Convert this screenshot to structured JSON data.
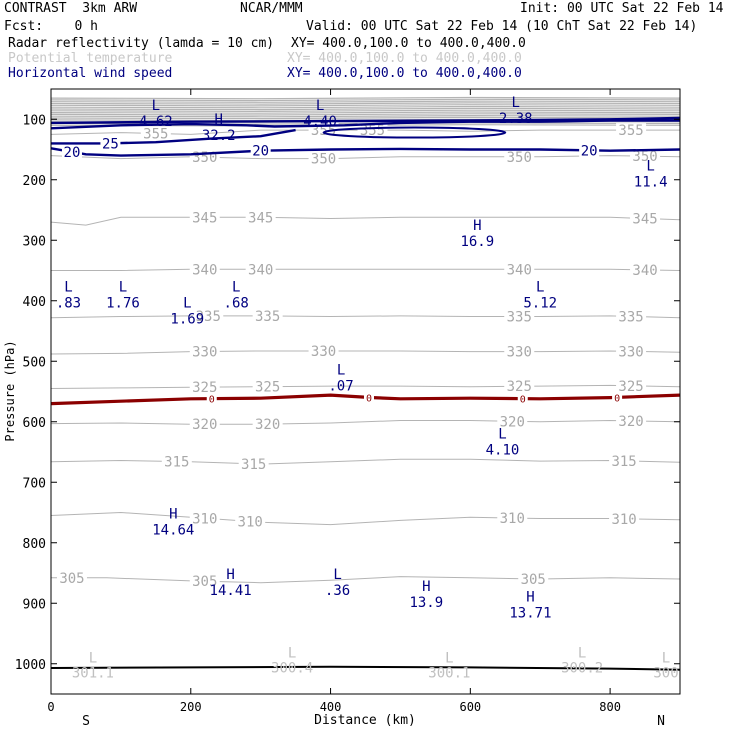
{
  "header": {
    "title_left": "CONTRAST  3km ARW",
    "title_center": "NCAR/MMM",
    "init": "Init: 00 UTC Sat 22 Feb 14",
    "fcst": "Fcst:    0 h",
    "valid": "Valid: 00 UTC Sat 22 Feb 14 (10 ChT Sat 22 Feb 14)",
    "fields": [
      {
        "label": "Radar reflectivity (lamda = 10 cm)",
        "xy": "XY= 400.0,100.0 to 400.0,400.0",
        "color": "#000000"
      },
      {
        "label": "Potential temperature",
        "xy": "XY= 400.0,100.0 to 400.0,400.0",
        "color": "#c8c8c8"
      },
      {
        "label": "Horizontal wind speed",
        "xy": "XY= 400.0,100.0 to 400.0,400.0",
        "color": "#000080"
      }
    ]
  },
  "colors": {
    "theta": "#b4b4b4",
    "theta_label": "#a8a8a8",
    "wind": "#000080",
    "freezing": "#8b0000",
    "extrema": "#000080"
  },
  "chart_data": {
    "type": "line",
    "title": "",
    "xlabel": "Distance (km)",
    "ylabel": "Pressure (hPa)",
    "xlim": [
      0,
      900
    ],
    "ylim": [
      1050,
      50
    ],
    "x_ticks": [
      0,
      200,
      400,
      600,
      800
    ],
    "y_ticks": [
      100,
      200,
      300,
      400,
      500,
      600,
      700,
      800,
      900,
      1000
    ],
    "x_end_labels": {
      "left": "S",
      "right": "N"
    },
    "theta_contours": [
      {
        "name": "305",
        "points": [
          [
            0,
            858
          ],
          [
            80,
            858
          ],
          [
            200,
            863
          ],
          [
            300,
            866
          ],
          [
            400,
            862
          ],
          [
            500,
            856
          ],
          [
            600,
            858
          ],
          [
            700,
            860
          ],
          [
            800,
            858
          ],
          [
            900,
            860
          ]
        ],
        "labels": [
          [
            30,
            "305"
          ],
          [
            220,
            "305"
          ],
          [
            690,
            "305"
          ]
        ]
      },
      {
        "name": "310",
        "points": [
          [
            0,
            755
          ],
          [
            100,
            750
          ],
          [
            200,
            758
          ],
          [
            300,
            766
          ],
          [
            400,
            770
          ],
          [
            500,
            763
          ],
          [
            600,
            758
          ],
          [
            700,
            760
          ],
          [
            800,
            760
          ],
          [
            900,
            762
          ]
        ],
        "labels": [
          [
            220,
            "310"
          ],
          [
            285,
            "310"
          ],
          [
            660,
            "310"
          ],
          [
            820,
            "310"
          ]
        ]
      },
      {
        "name": "315",
        "points": [
          [
            0,
            666
          ],
          [
            100,
            664
          ],
          [
            200,
            666
          ],
          [
            300,
            670
          ],
          [
            400,
            666
          ],
          [
            500,
            662
          ],
          [
            600,
            662
          ],
          [
            700,
            665
          ],
          [
            800,
            664
          ],
          [
            900,
            667
          ]
        ],
        "labels": [
          [
            180,
            "315"
          ],
          [
            290,
            "315"
          ],
          [
            820,
            "315"
          ]
        ]
      },
      {
        "name": "320",
        "points": [
          [
            0,
            603
          ],
          [
            100,
            602
          ],
          [
            200,
            604
          ],
          [
            300,
            604
          ],
          [
            400,
            602
          ],
          [
            500,
            598
          ],
          [
            600,
            598
          ],
          [
            700,
            600
          ],
          [
            800,
            598
          ],
          [
            900,
            600
          ]
        ],
        "labels": [
          [
            220,
            "320"
          ],
          [
            310,
            "320"
          ],
          [
            660,
            "320"
          ],
          [
            830,
            "320"
          ]
        ]
      },
      {
        "name": "325",
        "points": [
          [
            0,
            545
          ],
          [
            100,
            544
          ],
          [
            200,
            543
          ],
          [
            300,
            542
          ],
          [
            400,
            541
          ],
          [
            500,
            541
          ],
          [
            600,
            542
          ],
          [
            700,
            541
          ],
          [
            800,
            540
          ],
          [
            900,
            542
          ]
        ],
        "labels": [
          [
            220,
            "325"
          ],
          [
            310,
            "325"
          ],
          [
            670,
            "325"
          ],
          [
            830,
            "325"
          ]
        ]
      },
      {
        "name": "330",
        "points": [
          [
            0,
            488
          ],
          [
            100,
            487
          ],
          [
            200,
            484
          ],
          [
            300,
            483
          ],
          [
            400,
            483
          ],
          [
            500,
            483
          ],
          [
            600,
            484
          ],
          [
            700,
            484
          ],
          [
            800,
            483
          ],
          [
            900,
            485
          ]
        ],
        "labels": [
          [
            220,
            "330"
          ],
          [
            390,
            "330"
          ],
          [
            670,
            "330"
          ],
          [
            830,
            "330"
          ]
        ]
      },
      {
        "name": "335",
        "points": [
          [
            0,
            428
          ],
          [
            100,
            426
          ],
          [
            200,
            425
          ],
          [
            300,
            425
          ],
          [
            400,
            426
          ],
          [
            500,
            425
          ],
          [
            600,
            426
          ],
          [
            700,
            426
          ],
          [
            800,
            425
          ],
          [
            900,
            428
          ]
        ],
        "labels": [
          [
            225,
            "335"
          ],
          [
            310,
            "335"
          ],
          [
            670,
            "335"
          ],
          [
            830,
            "335"
          ]
        ]
      },
      {
        "name": "340",
        "points": [
          [
            0,
            350
          ],
          [
            100,
            350
          ],
          [
            200,
            348
          ],
          [
            300,
            348
          ],
          [
            400,
            348
          ],
          [
            500,
            348
          ],
          [
            600,
            348
          ],
          [
            700,
            348
          ],
          [
            800,
            348
          ],
          [
            900,
            350
          ]
        ],
        "labels": [
          [
            220,
            "340"
          ],
          [
            300,
            "340"
          ],
          [
            670,
            "340"
          ],
          [
            850,
            "340"
          ]
        ]
      },
      {
        "name": "345",
        "points": [
          [
            0,
            270
          ],
          [
            50,
            275
          ],
          [
            100,
            262
          ],
          [
            200,
            262
          ],
          [
            300,
            262
          ],
          [
            400,
            264
          ],
          [
            500,
            262
          ],
          [
            600,
            262
          ],
          [
            700,
            262
          ],
          [
            800,
            262
          ],
          [
            900,
            266
          ]
        ],
        "labels": [
          [
            220,
            "345"
          ],
          [
            300,
            "345"
          ],
          [
            850,
            "345"
          ]
        ]
      },
      {
        "name": "350",
        "points": [
          [
            0,
            160
          ],
          [
            100,
            165
          ],
          [
            200,
            162
          ],
          [
            300,
            165
          ],
          [
            400,
            165
          ],
          [
            500,
            162
          ],
          [
            600,
            162
          ],
          [
            700,
            162
          ],
          [
            800,
            160
          ],
          [
            900,
            162
          ]
        ],
        "labels": [
          [
            220,
            "350"
          ],
          [
            390,
            "350"
          ],
          [
            670,
            "350"
          ],
          [
            850,
            "350"
          ]
        ]
      },
      {
        "name": "355",
        "points": [
          [
            0,
            125
          ],
          [
            100,
            122
          ],
          [
            200,
            125
          ],
          [
            300,
            118
          ],
          [
            400,
            118
          ],
          [
            500,
            118
          ],
          [
            600,
            120
          ],
          [
            700,
            118
          ],
          [
            800,
            118
          ],
          [
            900,
            118
          ]
        ],
        "labels": [
          [
            150,
            "355"
          ],
          [
            390,
            "355"
          ],
          [
            460,
            "355"
          ],
          [
            830,
            "355"
          ]
        ]
      }
    ],
    "stratospheric_band": {
      "top": 65,
      "bottom": 112
    },
    "wind_contours": [
      {
        "name": "20",
        "points": [
          [
            0,
            148
          ],
          [
            50,
            158
          ],
          [
            100,
            160
          ],
          [
            200,
            158
          ],
          [
            300,
            152
          ],
          [
            400,
            150
          ],
          [
            500,
            149
          ],
          [
            600,
            150
          ],
          [
            700,
            150
          ],
          [
            800,
            152
          ],
          [
            900,
            150
          ]
        ],
        "labels": [
          [
            30,
            "20"
          ],
          [
            300,
            "20"
          ],
          [
            770,
            "20"
          ]
        ]
      },
      {
        "name": "25",
        "points": [
          [
            0,
            140
          ],
          [
            80,
            140
          ],
          [
            150,
            138
          ],
          [
            230,
            132
          ],
          [
            300,
            128
          ],
          [
            350,
            118
          ]
        ],
        "labels": [
          [
            85,
            "25"
          ]
        ]
      },
      {
        "name": "upper",
        "points": [
          [
            0,
            106
          ],
          [
            200,
            104
          ],
          [
            400,
            103
          ],
          [
            600,
            102
          ],
          [
            800,
            100
          ],
          [
            900,
            98
          ]
        ],
        "labels": []
      },
      {
        "name": "jet-core",
        "points": [
          [
            0,
            115
          ],
          [
            100,
            110
          ],
          [
            200,
            108
          ],
          [
            280,
            110
          ],
          [
            320,
            112
          ],
          [
            420,
            110
          ],
          [
            500,
            106
          ],
          [
            600,
            104
          ],
          [
            700,
            104
          ],
          [
            800,
            102
          ],
          [
            900,
            102
          ]
        ],
        "labels": []
      }
    ],
    "freezing_line": {
      "label": "0",
      "points": [
        [
          0,
          570
        ],
        [
          100,
          566
        ],
        [
          200,
          562
        ],
        [
          300,
          561
        ],
        [
          400,
          556
        ],
        [
          460,
          560
        ],
        [
          500,
          562
        ],
        [
          600,
          561
        ],
        [
          700,
          562
        ],
        [
          800,
          560
        ],
        [
          900,
          556
        ]
      ],
      "labels": [
        230,
        455,
        675,
        810
      ]
    },
    "surface_line": [
      [
        0,
        1007
      ],
      [
        200,
        1006
      ],
      [
        400,
        1005
      ],
      [
        600,
        1006
      ],
      [
        800,
        1008
      ],
      [
        900,
        1010
      ]
    ],
    "extrema": [
      {
        "type": "L",
        "value": "4.62",
        "x": 150,
        "p": 85
      },
      {
        "type": "H",
        "value": "32.2",
        "x": 240,
        "p": 108
      },
      {
        "type": "L",
        "value": "4.40",
        "x": 385,
        "p": 85
      },
      {
        "type": "L",
        "value": "2.38",
        "x": 665,
        "p": 80
      },
      {
        "type": "L",
        "value": "11.4",
        "x": 858,
        "p": 185
      },
      {
        "type": "H",
        "value": "16.9",
        "x": 610,
        "p": 283
      },
      {
        "type": "L",
        "value": ".83",
        "x": 25,
        "p": 385
      },
      {
        "type": "L",
        "value": "1.76",
        "x": 103,
        "p": 385
      },
      {
        "type": "L",
        "value": "1.69",
        "x": 195,
        "p": 411
      },
      {
        "type": "L",
        "value": ".68",
        "x": 265,
        "p": 385
      },
      {
        "type": "L",
        "value": "5.12",
        "x": 700,
        "p": 385
      },
      {
        "type": "L",
        "value": ".07",
        "x": 415,
        "p": 522
      },
      {
        "type": "L",
        "value": "4.10",
        "x": 646,
        "p": 628
      },
      {
        "type": "H",
        "value": "14.64",
        "x": 175,
        "p": 760
      },
      {
        "type": "H",
        "value": "14.41",
        "x": 257,
        "p": 860
      },
      {
        "type": "L",
        "value": ".36",
        "x": 410,
        "p": 860
      },
      {
        "type": "H",
        "value": "13.9",
        "x": 537,
        "p": 880
      },
      {
        "type": "H",
        "value": "13.71",
        "x": 686,
        "p": 897
      }
    ],
    "surface_extrema": [
      {
        "type": "L",
        "value": "301.1",
        "x": 60,
        "p": 998
      },
      {
        "type": "L",
        "value": "300.4",
        "x": 345,
        "p": 990
      },
      {
        "type": "L",
        "value": "300.1",
        "x": 570,
        "p": 998
      },
      {
        "type": "L",
        "value": "300.2",
        "x": 760,
        "p": 990
      },
      {
        "type": "L",
        "value": "300",
        "x": 880,
        "p": 998
      }
    ]
  }
}
